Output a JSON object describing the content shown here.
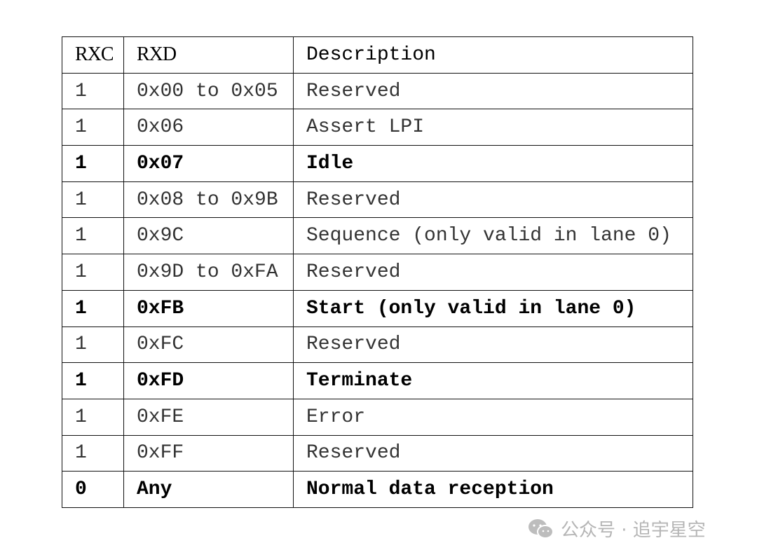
{
  "table": {
    "headers": [
      "RXC",
      "RXD",
      "Description"
    ],
    "rows": [
      {
        "rxc": "1",
        "rxd": "0x00 to 0x05",
        "desc": "Reserved",
        "bold": false
      },
      {
        "rxc": "1",
        "rxd": "0x06",
        "desc": "Assert LPI",
        "bold": false
      },
      {
        "rxc": "1",
        "rxd": "0x07",
        "desc": "Idle",
        "bold": true
      },
      {
        "rxc": "1",
        "rxd": "0x08 to 0x9B",
        "desc": "Reserved",
        "bold": false
      },
      {
        "rxc": "1",
        "rxd": "0x9C",
        "desc": "Sequence (only valid in lane 0)",
        "bold": false
      },
      {
        "rxc": "1",
        "rxd": "0x9D to 0xFA",
        "desc": "Reserved",
        "bold": false
      },
      {
        "rxc": "1",
        "rxd": "0xFB",
        "desc": "Start (only valid in lane 0)",
        "bold": true
      },
      {
        "rxc": "1",
        "rxd": "0xFC",
        "desc": "Reserved",
        "bold": false
      },
      {
        "rxc": "1",
        "rxd": "0xFD",
        "desc": "Terminate",
        "bold": true
      },
      {
        "rxc": "1",
        "rxd": "0xFE",
        "desc": "Error",
        "bold": false
      },
      {
        "rxc": "1",
        "rxd": "0xFF",
        "desc": "Reserved",
        "bold": false
      },
      {
        "rxc": "0",
        "rxd": "Any",
        "desc": "Normal data reception",
        "bold": true
      }
    ]
  },
  "watermark": {
    "icon": "wechat-icon",
    "text": "公众号 · 追宇星空"
  }
}
